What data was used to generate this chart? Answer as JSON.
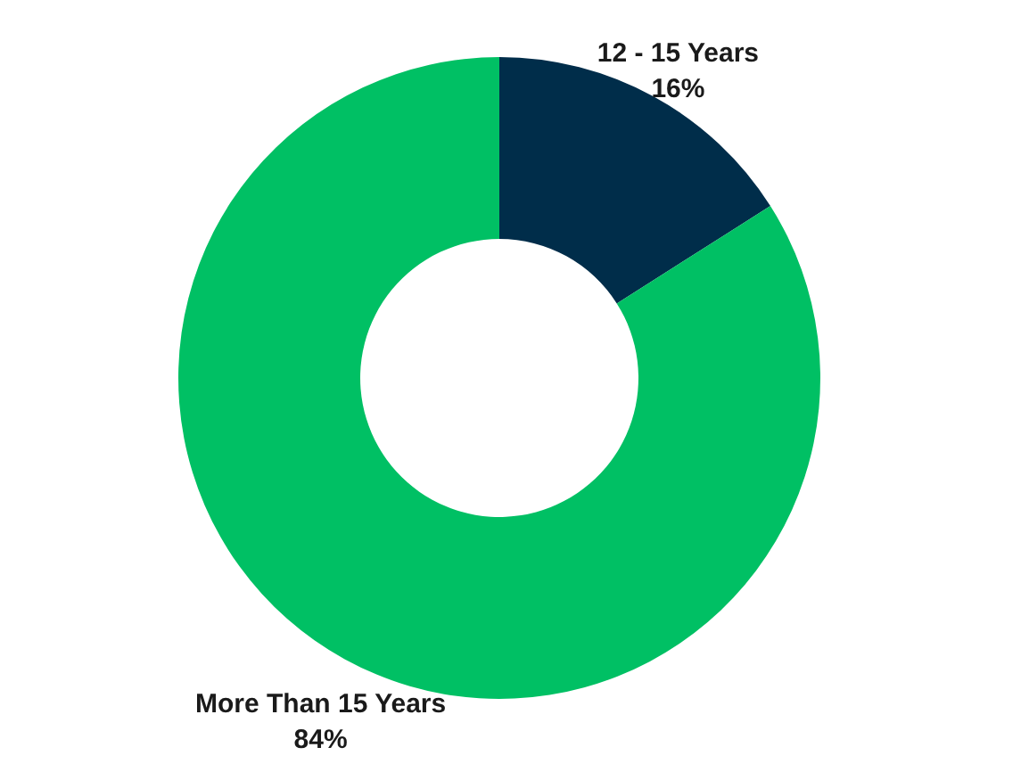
{
  "chart_data": {
    "type": "donut",
    "categories": [
      "12 - 15 Years",
      "More Than 15 Years"
    ],
    "values": [
      16,
      84
    ],
    "colors": [
      "#002d4a",
      "#00c064"
    ],
    "value_labels": [
      "16%",
      "84%"
    ]
  }
}
